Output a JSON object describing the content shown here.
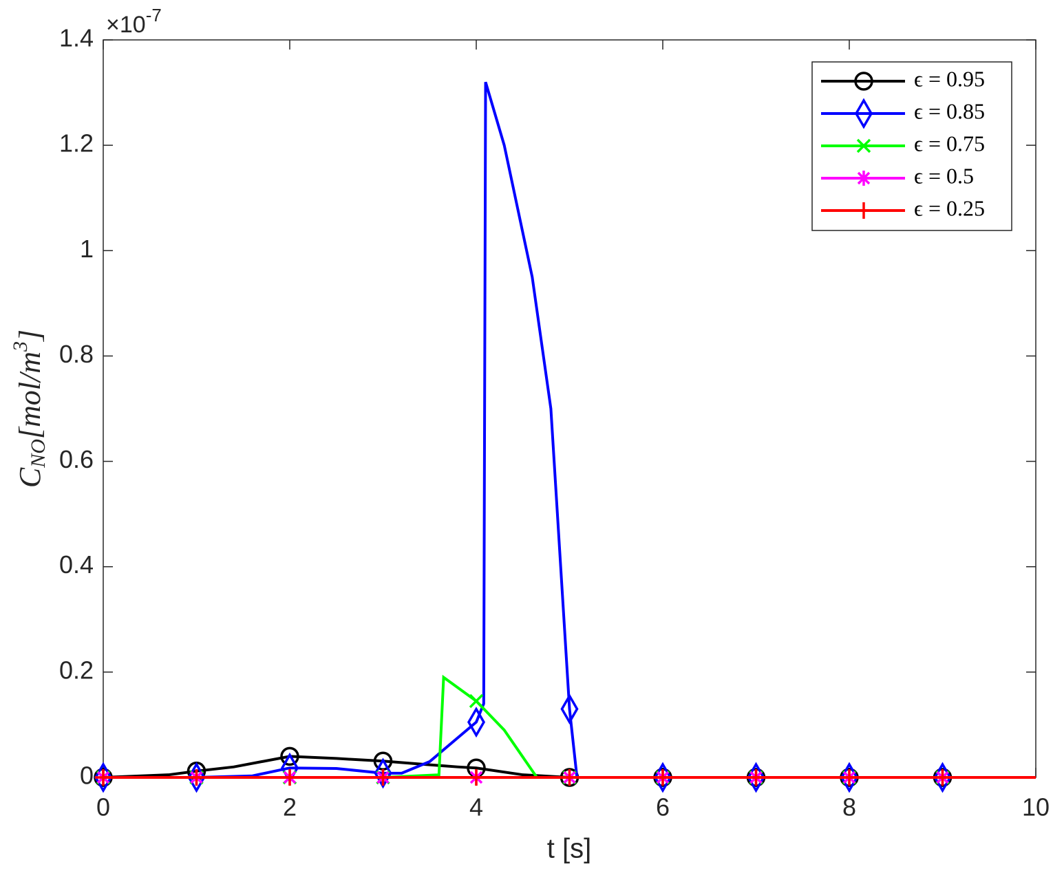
{
  "chart_data": {
    "type": "line",
    "xlabel": "t [s]",
    "ylabel_parts": [
      "C",
      "NO",
      "[mol/m",
      "3",
      "]"
    ],
    "y_multiplier": {
      "base": "×10",
      "exponent": "-7"
    },
    "xlim": [
      0,
      10
    ],
    "xticks": [
      0,
      2,
      4,
      6,
      8,
      10
    ],
    "ylim": [
      0,
      1.4
    ],
    "yticks": [
      0,
      0.2,
      0.4,
      0.6,
      0.8,
      1,
      1.2,
      1.4
    ],
    "legend": "upper right",
    "series": [
      {
        "name": "ϵ = 0.95",
        "color": "#000000",
        "marker": "o",
        "x": [
          0,
          0.7,
          1,
          1.4,
          2,
          2.5,
          3,
          3.5,
          3.8,
          4,
          4.5,
          5,
          6,
          7,
          8,
          9,
          10
        ],
        "values": [
          0,
          0.005,
          0.012,
          0.02,
          0.04,
          0.036,
          0.031,
          0.024,
          0.02,
          0.018,
          0.005,
          0,
          0,
          0,
          0,
          0,
          0
        ]
      },
      {
        "name": "ϵ = 0.85",
        "color": "#0000ff",
        "marker": "d",
        "x": [
          0,
          1,
          1.6,
          2,
          2.5,
          3,
          3.2,
          3.5,
          4,
          4.08,
          4.1,
          4.3,
          4.6,
          4.8,
          5,
          5.08,
          6,
          7,
          8,
          9,
          10
        ],
        "values": [
          0,
          0,
          0.003,
          0.018,
          0.017,
          0.008,
          0.008,
          0.03,
          0.105,
          0.14,
          1.32,
          1.2,
          0.95,
          0.7,
          0.13,
          0,
          0,
          0,
          0,
          0,
          0
        ]
      },
      {
        "name": "ϵ = 0.75",
        "color": "#00ff00",
        "marker": "x",
        "x": [
          0,
          1,
          2,
          3,
          3.6,
          3.65,
          4,
          4.3,
          4.65,
          5,
          6,
          7,
          8,
          9,
          10
        ],
        "values": [
          0,
          0,
          0,
          0,
          0.005,
          0.19,
          0.145,
          0.09,
          0,
          0,
          0,
          0,
          0,
          0,
          0
        ]
      },
      {
        "name": "ϵ = 0.5",
        "color": "#ff00ff",
        "marker": "*",
        "x": [
          0,
          1,
          2,
          3,
          4,
          5,
          6,
          7,
          8,
          9,
          10
        ],
        "values": [
          0,
          0,
          0,
          0,
          0,
          0,
          0,
          0,
          0,
          0,
          0
        ]
      },
      {
        "name": "ϵ = 0.25",
        "color": "#ff0000",
        "marker": "+",
        "x": [
          0,
          1,
          2,
          3,
          4,
          5,
          6,
          7,
          8,
          9,
          10
        ],
        "values": [
          0,
          0,
          0,
          0,
          0,
          0,
          0,
          0,
          0,
          0,
          0
        ]
      }
    ]
  }
}
